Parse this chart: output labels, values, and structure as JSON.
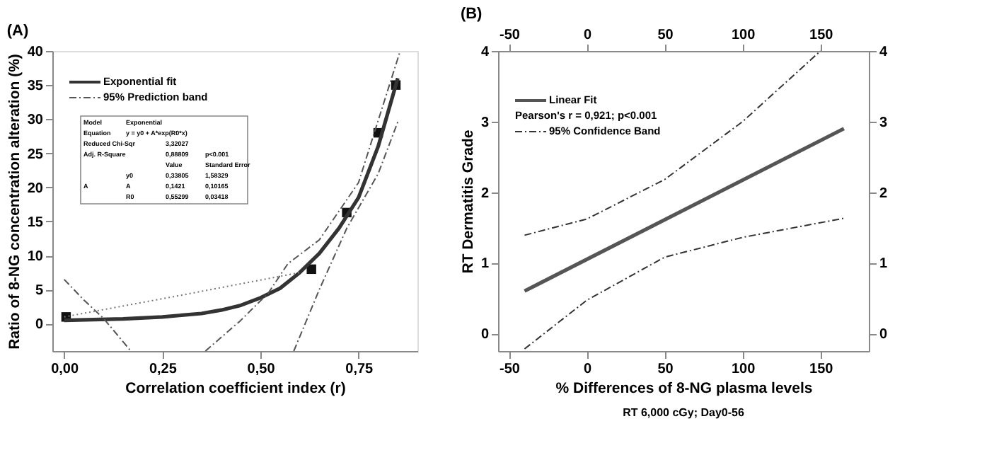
{
  "chart_data": [
    {
      "type": "line",
      "title": "(A)",
      "xlabel": "Correlation coefficient index (r)",
      "ylabel": "Ratio of 8-NG concentration alteration (%)",
      "xlim": [
        -0.03,
        0.9
      ],
      "ylim": [
        -4,
        40
      ],
      "xticks": [
        {
          "value": 0,
          "label": "0,00"
        },
        {
          "value": 0.25,
          "label": "0,25"
        },
        {
          "value": 0.5,
          "label": "0,50"
        },
        {
          "value": 0.75,
          "label": "0,75"
        }
      ],
      "yticks": [
        0,
        5,
        10,
        15,
        20,
        25,
        30,
        35,
        40
      ],
      "grid": false,
      "legend": "top left",
      "series": [
        {
          "type": "scatter",
          "marker": "square",
          "color": "#111111",
          "x": [
            0.005,
            0.63,
            0.72,
            0.8,
            0.845
          ],
          "values": [
            1,
            8,
            16.3,
            28,
            35
          ]
        },
        {
          "type": "line",
          "name": "Exponential fit",
          "line_style": "solid",
          "color": "#333333",
          "x": [
            0,
            0.15,
            0.25,
            0.35,
            0.4,
            0.45,
            0.5,
            0.55,
            0.6,
            0.65,
            0.7,
            0.75,
            0.8,
            0.85
          ],
          "values": [
            0.5,
            0.7,
            1,
            1.5,
            2,
            2.7,
            3.8,
            5.2,
            7.5,
            10.3,
            14,
            18.5,
            26,
            36
          ]
        },
        {
          "type": "line",
          "name": "95% Prediction band",
          "line_style": "dashed",
          "color": "#555555",
          "x": [
            0.36,
            0.45,
            0.52,
            0.57,
            0.65,
            0.75,
            0.855
          ],
          "values": [
            -4,
            0.5,
            4.5,
            8.8,
            12.3,
            20.7,
            39.8
          ]
        },
        {
          "type": "line",
          "line_style": "dashed",
          "color": "#555555",
          "x": [
            0.585,
            0.65,
            0.72,
            0.8,
            0.85
          ],
          "values": [
            -4,
            5,
            14,
            22,
            29.6
          ]
        },
        {
          "type": "line",
          "line_style": "dashed",
          "color": "#555555",
          "x": [
            0,
            0.05,
            0.1,
            0.17
          ],
          "values": [
            6.5,
            3.5,
            0.8,
            -4
          ]
        },
        {
          "type": "line",
          "line_style": "dotted",
          "color": "#777777",
          "x": [
            0,
            0.3,
            0.6
          ],
          "values": [
            1,
            4.2,
            7.5
          ]
        }
      ],
      "annotations": [
        "Model",
        "Exponential",
        "Equation",
        "y = y0 + A*exp(R0*x)",
        "Reduced Chi-Sqr",
        "3,32027",
        "Adj. R-Square",
        "0,88809",
        "p<0.001",
        "Value",
        "Standard Error",
        "A",
        "y0",
        "0,33805",
        "1,58329",
        "A",
        "0,1421",
        "0,10165",
        "R0",
        "0,55299",
        "0,03418"
      ]
    },
    {
      "type": "line",
      "title": "(B)",
      "xlabel": "% Differences of 8-NG plasma levels",
      "ylabel": "RT Dermatitis Grade",
      "xlim": [
        -57,
        181
      ],
      "ylim": [
        -0.25,
        4
      ],
      "xticks": [
        -50,
        0,
        50,
        100,
        150
      ],
      "yticks": [
        0,
        1,
        2,
        3,
        4
      ],
      "x2lim": [
        -57,
        181
      ],
      "x2ticks": [
        -50,
        0,
        50,
        100,
        150
      ],
      "y2lim": [
        -0.25,
        4
      ],
      "y2ticks": [
        0,
        1,
        2,
        3,
        4
      ],
      "grid": false,
      "legend": "top left",
      "series": [
        {
          "type": "line",
          "name": "Linear Fit",
          "line_style": "solid",
          "color": "#555555",
          "x": [
            -40,
            165
          ],
          "values": [
            0.6,
            2.9
          ]
        },
        {
          "type": "line",
          "name": "95% Confidence Band",
          "line_style": "dashed",
          "color": "#333333",
          "x": [
            -40,
            0,
            50,
            100,
            150
          ],
          "values": [
            1.39,
            1.62,
            2.18,
            3.0,
            4.0
          ]
        },
        {
          "type": "line",
          "line_style": "dashed",
          "color": "#333333",
          "x": [
            -40,
            0,
            50,
            100,
            165
          ],
          "values": [
            -0.22,
            0.47,
            1.08,
            1.36,
            1.63
          ]
        }
      ],
      "annotations": [
        "Pearson's r = 0,921; p<0.001",
        "RT 6,000 cGy; Day0-56"
      ]
    }
  ]
}
